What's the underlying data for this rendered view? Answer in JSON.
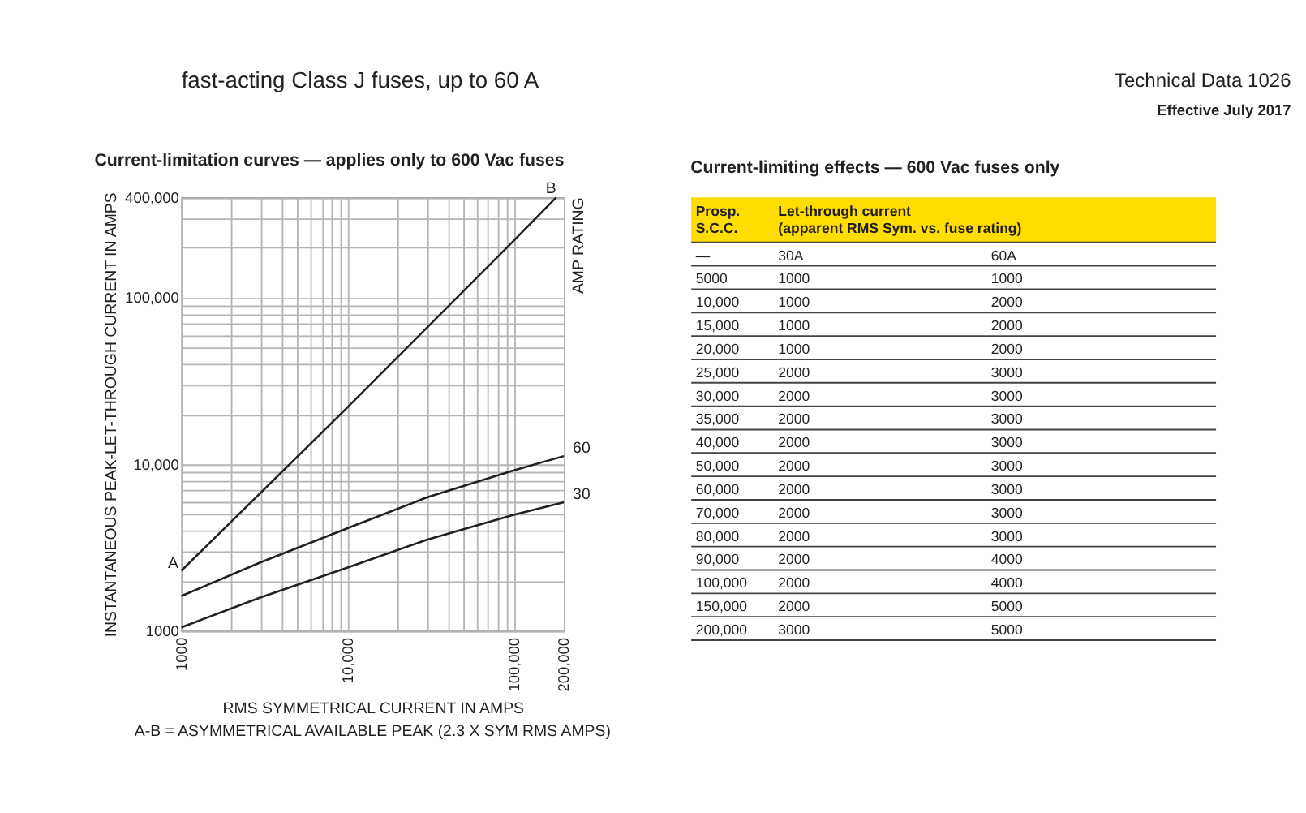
{
  "chart_data": [
    {
      "type": "other",
      "title": "fast-acting Class J fuses, up to 60 A",
      "annotations": [
        "Technical Data 1026",
        "Effective July 2017"
      ]
    },
    {
      "type": "line",
      "title": "Current-limitation curves — applies only to 600 Vac fuses",
      "xlabel": "RMS SYMMETRICAL CURRENT IN AMPS",
      "ylabel": "INSTANTANEOUS PEAK-LET-THROUGH CURRENT IN AMPS",
      "log": "xy",
      "grid": true,
      "xlim": [
        1000,
        200000
      ],
      "ylim": [
        1000,
        400000
      ],
      "xticks": [
        1000,
        {
          "value": 2000,
          "label": null
        },
        {
          "value": 3000,
          "label": null
        },
        {
          "value": 4000,
          "label": null
        },
        {
          "value": 5000,
          "label": null
        },
        {
          "value": 6000,
          "label": null
        },
        {
          "value": 7000,
          "label": null
        },
        {
          "value": 8000,
          "label": null
        },
        {
          "value": 9000,
          "label": null
        },
        {
          "value": 10000,
          "label": "10,000"
        },
        {
          "value": 20000,
          "label": null
        },
        {
          "value": 30000,
          "label": null
        },
        {
          "value": 40000,
          "label": null
        },
        {
          "value": 50000,
          "label": null
        },
        {
          "value": 60000,
          "label": null
        },
        {
          "value": 70000,
          "label": null
        },
        {
          "value": 80000,
          "label": null
        },
        {
          "value": 90000,
          "label": null
        },
        {
          "value": 100000,
          "label": "100,000"
        },
        {
          "value": 200000,
          "label": "200,000"
        }
      ],
      "yticks": [
        1000,
        {
          "value": 2000,
          "label": null
        },
        {
          "value": 3000,
          "label": null
        },
        {
          "value": 4000,
          "label": null
        },
        {
          "value": 5000,
          "label": null
        },
        {
          "value": 6000,
          "label": null
        },
        {
          "value": 7000,
          "label": null
        },
        {
          "value": 8000,
          "label": null
        },
        {
          "value": 9000,
          "label": null
        },
        {
          "value": 10000,
          "label": "10,000"
        },
        {
          "value": 20000,
          "label": null
        },
        {
          "value": 30000,
          "label": null
        },
        {
          "value": 40000,
          "label": null
        },
        {
          "value": 50000,
          "label": null
        },
        {
          "value": 60000,
          "label": null
        },
        {
          "value": 70000,
          "label": null
        },
        {
          "value": 80000,
          "label": null
        },
        {
          "value": 90000,
          "label": null
        },
        {
          "value": 100000,
          "label": "100,000"
        },
        {
          "value": 200000,
          "label": null
        },
        {
          "value": 300000,
          "label": null
        },
        {
          "value": 400000,
          "label": "400,000"
        }
      ],
      "series": [
        {
          "color": "#231f20",
          "x": [
            1000,
            10000,
            100000,
            180000
          ],
          "values": [
            2300,
            22000,
            220000,
            400000
          ]
        },
        {
          "name": "60",
          "color": "#231f20",
          "x": [
            1000,
            3000,
            10000,
            30000,
            100000,
            200000
          ],
          "values": [
            1620,
            2580,
            4130,
            6330,
            9200,
            11200
          ]
        },
        {
          "name": "30",
          "color": "#231f20",
          "x": [
            1000,
            3000,
            10000,
            30000,
            100000,
            200000
          ],
          "values": [
            1050,
            1590,
            2400,
            3520,
            4980,
            5920
          ]
        }
      ],
      "annotations": [
        {
          "text": "A",
          "x": 1000,
          "y": 2300
        },
        {
          "text": "B",
          "x": 180000,
          "y": 400000
        },
        "AMP RATING",
        "A-B = ASYMMETRICAL AVAILABLE PEAK (2.3 X SYM RMS AMPS)"
      ]
    },
    {
      "type": "heatmap",
      "title": "Current-limiting effects — 600 Vac fuses only",
      "ylabel": "Prosp.\nS.C.C.",
      "xlabel": "Let-through current\n(apparent RMS Sym. vs. fuse rating)",
      "annotations": [
        "—"
      ],
      "data_labels": true,
      "categories": [
        "30A",
        "60A"
      ],
      "y_categories": [
        "5000",
        "10,000",
        "15,000",
        "20,000",
        "25,000",
        "30,000",
        "35,000",
        "40,000",
        "50,000",
        "60,000",
        "70,000",
        "80,000",
        "90,000",
        "100,000",
        "150,000",
        "200,000"
      ],
      "cells": [
        [
          1000,
          1000
        ],
        [
          1000,
          2000
        ],
        [
          1000,
          2000
        ],
        [
          1000,
          2000
        ],
        [
          2000,
          3000
        ],
        [
          2000,
          3000
        ],
        [
          2000,
          3000
        ],
        [
          2000,
          3000
        ],
        [
          2000,
          3000
        ],
        [
          2000,
          3000
        ],
        [
          2000,
          3000
        ],
        [
          2000,
          3000
        ],
        [
          2000,
          4000
        ],
        [
          2000,
          4000
        ],
        [
          2000,
          5000
        ],
        [
          3000,
          5000
        ]
      ]
    }
  ]
}
